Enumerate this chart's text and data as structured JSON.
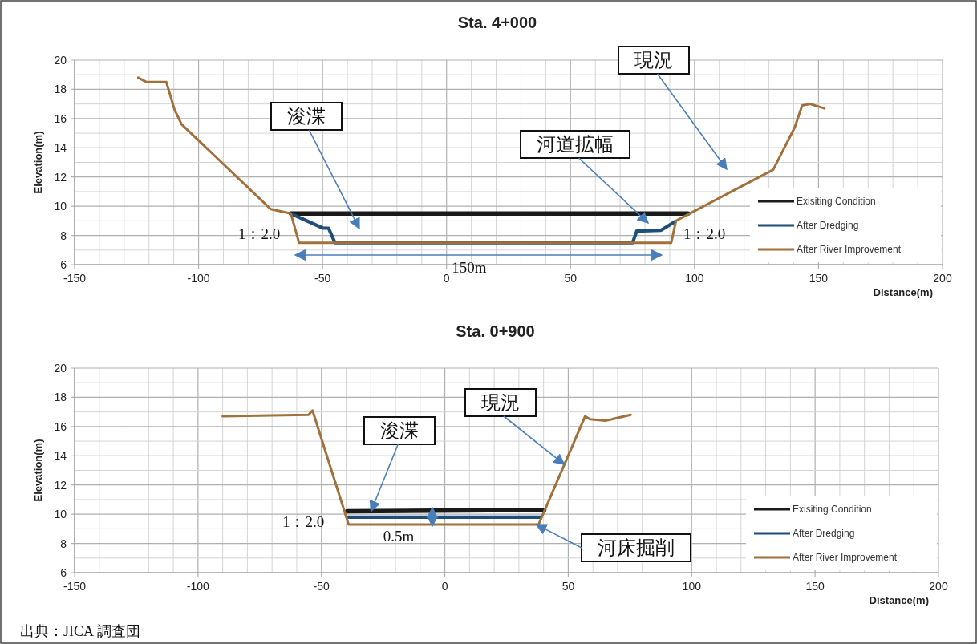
{
  "chart_data": [
    {
      "type": "line",
      "title": "Sta. 4+000",
      "xlabel": "Distance(m)",
      "ylabel": "Elevation(m)",
      "xlim": [
        -150,
        200
      ],
      "xticks": [
        -150,
        -100,
        -50,
        0,
        50,
        100,
        150,
        200
      ],
      "ylim": [
        6,
        20
      ],
      "yticks": [
        6,
        8,
        10,
        12,
        14,
        16,
        18,
        20
      ],
      "grid": true,
      "legend": "bottom right",
      "series": [
        {
          "name": "Exisiting Condition",
          "color": "#1a1a1a",
          "x": [
            -62.8,
            97.4
          ],
          "values": [
            9.5,
            9.5
          ]
        },
        {
          "name": "After Dredging",
          "color": "#1f4e79",
          "x": [
            -62.8,
            -49.8,
            -47.6,
            -45,
            75,
            76.7,
            86.4,
            92.2
          ],
          "values": [
            9.5,
            8.5,
            8.5,
            7.5,
            7.5,
            8.3,
            8.35,
            8.95
          ]
        },
        {
          "name": "After River Improvement",
          "color": "#a0713c",
          "x": [
            -124.3,
            -121,
            -113,
            -109.7,
            -106.8,
            -70.9,
            -62.8,
            -59.5,
            90.6,
            92.5,
            100.3,
            131.7,
            140.4,
            143.4,
            146.6,
            152.4
          ],
          "values": [
            18.8,
            18.5,
            18.5,
            16.6,
            15.6,
            9.8,
            9.5,
            7.5,
            7.5,
            9.0,
            9.7,
            12.5,
            15.4,
            16.9,
            17.0,
            16.7
          ]
        }
      ],
      "annotations": [
        "浚渫",
        "河道拡幅",
        "現況",
        "1：2.0",
        "1：2.0",
        "150m"
      ]
    },
    {
      "type": "line",
      "title": "Sta. 0+900",
      "xlabel": "Distance(m)",
      "ylabel": "Elevation(m)",
      "xlim": [
        -150,
        200
      ],
      "xticks": [
        -150,
        -100,
        -50,
        0,
        50,
        100,
        150,
        200
      ],
      "ylim": [
        6,
        20
      ],
      "yticks": [
        6,
        8,
        10,
        12,
        14,
        16,
        18,
        20
      ],
      "grid": true,
      "legend": "bottom right",
      "series": [
        {
          "name": "Exisiting Condition",
          "color": "#1a1a1a",
          "x": [
            -39.6,
            40.3
          ],
          "values": [
            10.2,
            10.3
          ]
        },
        {
          "name": "After Dredging",
          "color": "#1f4e79",
          "x": [
            -39.2,
            38.6
          ],
          "values": [
            9.8,
            9.8
          ]
        },
        {
          "name": "After River Improvement",
          "color": "#a0713c",
          "x": [
            -90,
            -55.2,
            -53.6,
            -39,
            38,
            56.8,
            58.8,
            65,
            75.3
          ],
          "values": [
            16.7,
            16.8,
            17.1,
            9.3,
            9.3,
            16.7,
            16.5,
            16.4,
            16.8
          ]
        }
      ],
      "annotations": [
        {
          "text": "浚渫",
          "x": -29.9,
          "y": 10.2
        },
        {
          "text": "現況",
          "x": 48.4,
          "y": 13.4
        },
        {
          "text": "河床掘削",
          "x": 37,
          "y": 9.3
        },
        "1：2.0",
        "0.5m",
        "出典：JICA 調査団"
      ]
    }
  ]
}
